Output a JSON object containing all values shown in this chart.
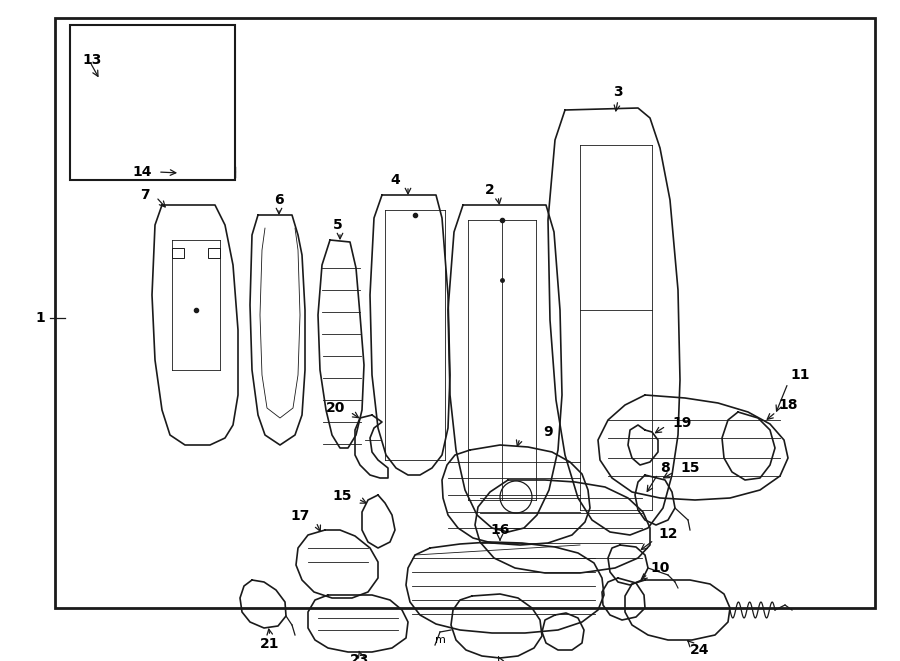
{
  "fig_width": 9.0,
  "fig_height": 6.61,
  "dpi": 100,
  "bg_color": "#ffffff",
  "lc": "#1a1a1a",
  "border_lw": 2.0,
  "part_lw": 1.2,
  "thin_lw": 0.6,
  "label_fs": 10
}
